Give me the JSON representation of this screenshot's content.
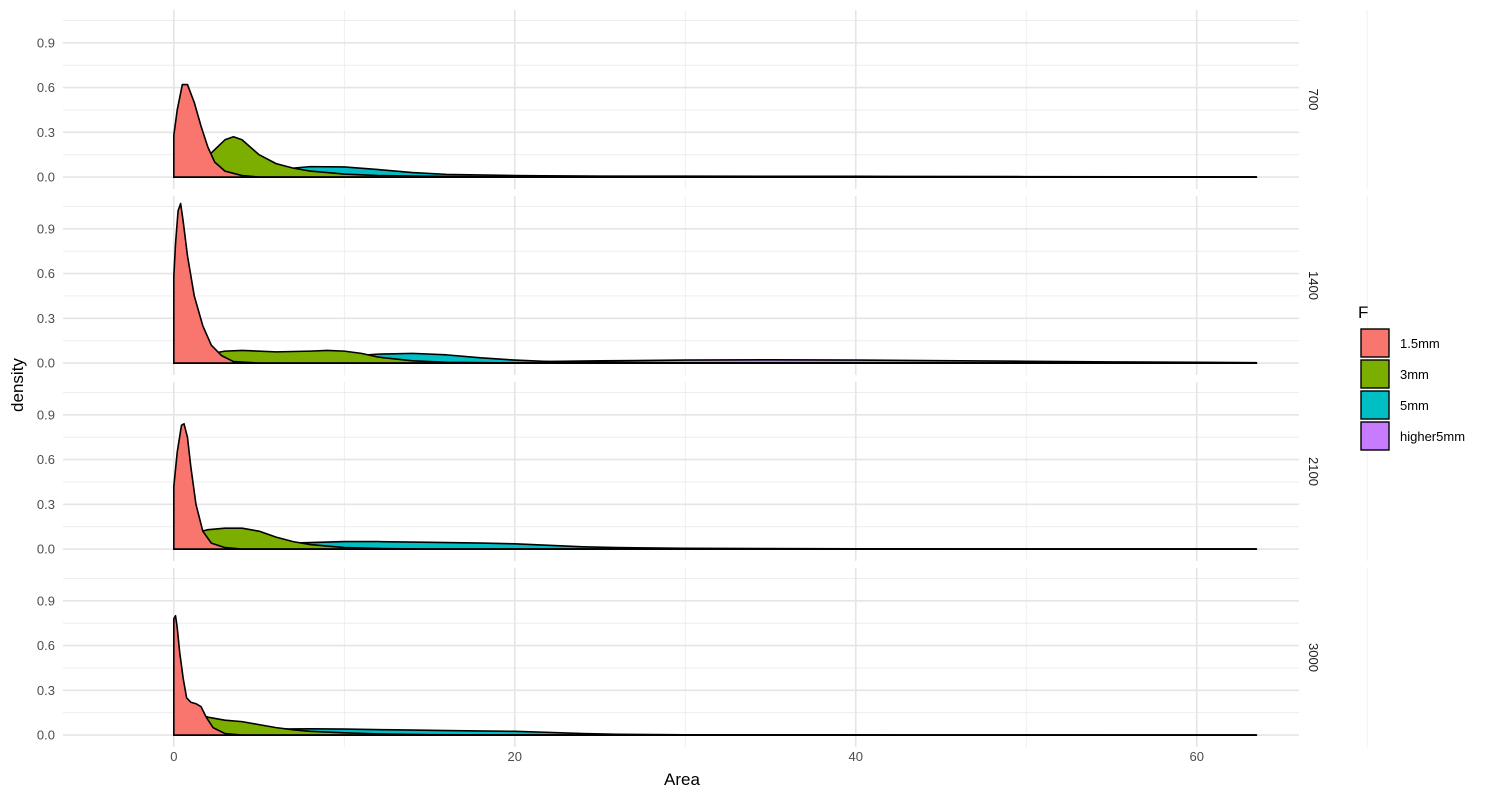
{
  "chart_data": {
    "type": "area",
    "xlabel": "Area",
    "ylabel": "density",
    "xlim": [
      -6.5,
      66
    ],
    "ylim": [
      -0.08,
      1.12
    ],
    "x_ticks": [
      0,
      20,
      40,
      60
    ],
    "y_ticks": [
      0.0,
      0.3,
      0.6,
      0.9
    ],
    "grid": true,
    "legend": {
      "title": "F",
      "placement": "right",
      "entries": [
        {
          "name": "1.5mm",
          "color": "#F8766D"
        },
        {
          "name": "3mm",
          "color": "#7CAE00"
        },
        {
          "name": "5mm",
          "color": "#00BFC4"
        },
        {
          "name": "higher5mm",
          "color": "#C77CFF"
        }
      ]
    },
    "panels": [
      {
        "label": "700",
        "series": [
          {
            "name": "higher5mm",
            "points": [
              [
                0,
                0.01
              ],
              [
                3,
                0.015
              ],
              [
                6,
                0.012
              ],
              [
                10,
                0.01
              ],
              [
                15,
                0.008
              ],
              [
                20,
                0.007
              ],
              [
                30,
                0.006
              ],
              [
                40,
                0.005
              ],
              [
                50,
                0.003
              ],
              [
                60,
                0.001
              ],
              [
                63.5,
                0.0
              ]
            ]
          },
          {
            "name": "5mm",
            "points": [
              [
                0,
                0.005
              ],
              [
                2,
                0.015
              ],
              [
                4,
                0.03
              ],
              [
                6,
                0.05
              ],
              [
                8,
                0.07
              ],
              [
                10,
                0.068
              ],
              [
                12,
                0.05
              ],
              [
                14,
                0.03
              ],
              [
                16,
                0.018
              ],
              [
                20,
                0.01
              ],
              [
                25,
                0.005
              ],
              [
                30,
                0.003
              ],
              [
                40,
                0.002
              ],
              [
                50,
                0.001
              ],
              [
                63.5,
                0.0
              ]
            ]
          },
          {
            "name": "3mm",
            "points": [
              [
                0,
                0.03
              ],
              [
                1,
                0.06
              ],
              [
                2,
                0.14
              ],
              [
                3,
                0.25
              ],
              [
                3.5,
                0.27
              ],
              [
                4,
                0.25
              ],
              [
                5,
                0.15
              ],
              [
                6,
                0.09
              ],
              [
                7,
                0.06
              ],
              [
                8,
                0.04
              ],
              [
                10,
                0.02
              ],
              [
                12,
                0.01
              ],
              [
                15,
                0.005
              ],
              [
                20,
                0.002
              ],
              [
                30,
                0.001
              ],
              [
                63.5,
                0.0
              ]
            ]
          },
          {
            "name": "1.5mm",
            "points": [
              [
                0,
                0.28
              ],
              [
                0.2,
                0.45
              ],
              [
                0.5,
                0.62
              ],
              [
                0.8,
                0.62
              ],
              [
                1.2,
                0.5
              ],
              [
                1.6,
                0.34
              ],
              [
                2,
                0.2
              ],
              [
                2.4,
                0.1
              ],
              [
                3,
                0.04
              ],
              [
                4,
                0.01
              ],
              [
                5,
                0.0
              ],
              [
                63.5,
                0.0
              ]
            ]
          }
        ]
      },
      {
        "label": "1400",
        "series": [
          {
            "name": "higher5mm",
            "points": [
              [
                0,
                0.0
              ],
              [
                10,
                0.003
              ],
              [
                20,
                0.008
              ],
              [
                25,
                0.015
              ],
              [
                30,
                0.02
              ],
              [
                35,
                0.022
              ],
              [
                40,
                0.02
              ],
              [
                45,
                0.016
              ],
              [
                50,
                0.012
              ],
              [
                55,
                0.008
              ],
              [
                60,
                0.005
              ],
              [
                63.5,
                0.003
              ]
            ]
          },
          {
            "name": "5mm",
            "points": [
              [
                0,
                0.0
              ],
              [
                5,
                0.015
              ],
              [
                8,
                0.03
              ],
              [
                10,
                0.045
              ],
              [
                12,
                0.06
              ],
              [
                14,
                0.065
              ],
              [
                16,
                0.055
              ],
              [
                18,
                0.035
              ],
              [
                20,
                0.02
              ],
              [
                22,
                0.01
              ],
              [
                25,
                0.005
              ],
              [
                30,
                0.002
              ],
              [
                40,
                0.001
              ],
              [
                63.5,
                0.0
              ]
            ]
          },
          {
            "name": "3mm",
            "points": [
              [
                0,
                0.01
              ],
              [
                1,
                0.03
              ],
              [
                2,
                0.06
              ],
              [
                3,
                0.08
              ],
              [
                4,
                0.085
              ],
              [
                6,
                0.075
              ],
              [
                8,
                0.08
              ],
              [
                9,
                0.085
              ],
              [
                10,
                0.08
              ],
              [
                11,
                0.065
              ],
              [
                12,
                0.04
              ],
              [
                14,
                0.015
              ],
              [
                16,
                0.005
              ],
              [
                20,
                0.001
              ],
              [
                63.5,
                0.0
              ]
            ]
          },
          {
            "name": "1.5mm",
            "points": [
              [
                0,
                0.58
              ],
              [
                0.1,
                0.8
              ],
              [
                0.25,
                1.02
              ],
              [
                0.4,
                1.07
              ],
              [
                0.55,
                0.95
              ],
              [
                0.8,
                0.72
              ],
              [
                1.2,
                0.45
              ],
              [
                1.7,
                0.25
              ],
              [
                2.2,
                0.12
              ],
              [
                2.8,
                0.05
              ],
              [
                3.5,
                0.01
              ],
              [
                5,
                0.0
              ],
              [
                63.5,
                0.0
              ]
            ]
          }
        ]
      },
      {
        "label": "2100",
        "series": [
          {
            "name": "5mm",
            "points": [
              [
                0,
                0.0
              ],
              [
                3,
                0.01
              ],
              [
                5,
                0.025
              ],
              [
                7,
                0.04
              ],
              [
                10,
                0.05
              ],
              [
                12,
                0.05
              ],
              [
                15,
                0.045
              ],
              [
                18,
                0.04
              ],
              [
                20,
                0.035
              ],
              [
                22,
                0.025
              ],
              [
                24,
                0.015
              ],
              [
                26,
                0.01
              ],
              [
                30,
                0.005
              ],
              [
                40,
                0.002
              ],
              [
                63.5,
                0.0
              ]
            ]
          },
          {
            "name": "3mm",
            "points": [
              [
                0,
                0.07
              ],
              [
                1,
                0.1
              ],
              [
                2,
                0.13
              ],
              [
                3,
                0.14
              ],
              [
                4,
                0.14
              ],
              [
                5,
                0.12
              ],
              [
                6,
                0.08
              ],
              [
                7,
                0.05
              ],
              [
                8,
                0.03
              ],
              [
                10,
                0.01
              ],
              [
                12,
                0.004
              ],
              [
                15,
                0.0
              ],
              [
                63.5,
                0.0
              ]
            ]
          },
          {
            "name": "1.5mm",
            "points": [
              [
                0,
                0.42
              ],
              [
                0.2,
                0.65
              ],
              [
                0.45,
                0.83
              ],
              [
                0.6,
                0.84
              ],
              [
                0.8,
                0.75
              ],
              [
                1,
                0.55
              ],
              [
                1.3,
                0.3
              ],
              [
                1.7,
                0.12
              ],
              [
                2.2,
                0.04
              ],
              [
                3,
                0.01
              ],
              [
                4,
                0.0
              ],
              [
                63.5,
                0.0
              ]
            ]
          }
        ]
      },
      {
        "label": "3000",
        "series": [
          {
            "name": "5mm",
            "points": [
              [
                0,
                0.02
              ],
              [
                2,
                0.03
              ],
              [
                4,
                0.035
              ],
              [
                6,
                0.04
              ],
              [
                8,
                0.042
              ],
              [
                10,
                0.04
              ],
              [
                13,
                0.035
              ],
              [
                16,
                0.03
              ],
              [
                20,
                0.025
              ],
              [
                22,
                0.018
              ],
              [
                24,
                0.01
              ],
              [
                26,
                0.005
              ],
              [
                30,
                0.002
              ],
              [
                63.5,
                0.0
              ]
            ]
          },
          {
            "name": "3mm",
            "points": [
              [
                0,
                0.2
              ],
              [
                0.3,
                0.23
              ],
              [
                0.6,
                0.21
              ],
              [
                1,
                0.17
              ],
              [
                1.5,
                0.14
              ],
              [
                2,
                0.12
              ],
              [
                3,
                0.1
              ],
              [
                4,
                0.09
              ],
              [
                5,
                0.07
              ],
              [
                6,
                0.05
              ],
              [
                7,
                0.035
              ],
              [
                8,
                0.025
              ],
              [
                10,
                0.015
              ],
              [
                12,
                0.008
              ],
              [
                15,
                0.003
              ],
              [
                20,
                0.001
              ],
              [
                63.5,
                0.0
              ]
            ]
          },
          {
            "name": "1.5mm",
            "points": [
              [
                0,
                0.78
              ],
              [
                0.1,
                0.8
              ],
              [
                0.2,
                0.72
              ],
              [
                0.35,
                0.55
              ],
              [
                0.55,
                0.38
              ],
              [
                0.75,
                0.25
              ],
              [
                1,
                0.22
              ],
              [
                1.3,
                0.21
              ],
              [
                1.6,
                0.19
              ],
              [
                1.9,
                0.12
              ],
              [
                2.3,
                0.05
              ],
              [
                3,
                0.01
              ],
              [
                4,
                0.0
              ],
              [
                63.5,
                0.0
              ]
            ]
          }
        ]
      }
    ]
  }
}
